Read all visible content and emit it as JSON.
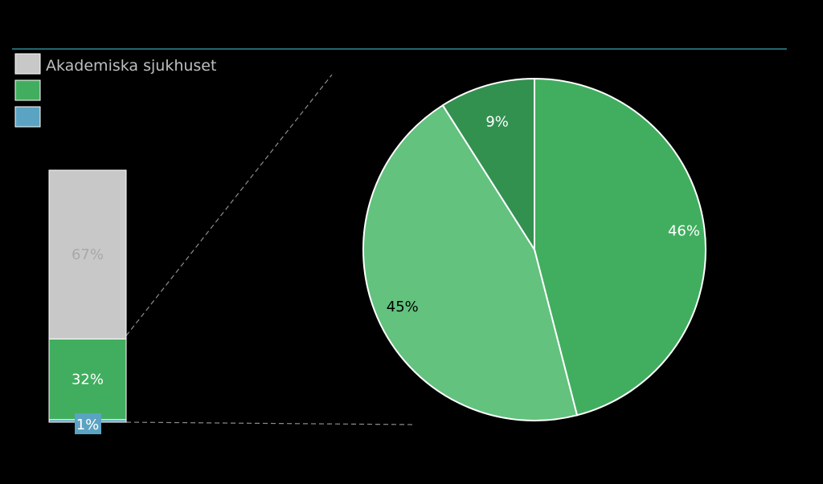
{
  "chart_data": {
    "type": "bar-of-pie",
    "legend": [
      {
        "label": "Akademiska sjukhuset",
        "color": "#c8c8c8"
      },
      {
        "label": "",
        "color": "#41ae5f"
      },
      {
        "label": "",
        "color": "#5ba3c2"
      }
    ],
    "stacked_bar": {
      "segments": [
        {
          "label": "67%",
          "value": 67,
          "color": "#c8c8c8",
          "text_color": "#a8a8a8"
        },
        {
          "label": "32%",
          "value": 32,
          "color": "#41ae5f",
          "text_color": "#ffffff"
        },
        {
          "label": "1%",
          "value": 1,
          "color": "#5ba3c2",
          "text_color": "#ffffff"
        }
      ]
    },
    "pie": {
      "slices": [
        {
          "label": "46%",
          "value": 46,
          "color": "#41ae5f",
          "text_color": "#ffffff"
        },
        {
          "label": "45%",
          "value": 45,
          "color": "#62c27e",
          "text_color": "#000000"
        },
        {
          "label": "9%",
          "value": 9,
          "color": "#339150",
          "text_color": "#ffffff"
        }
      ]
    },
    "colors": {
      "background": "#000000",
      "rule": "#2f8a94",
      "connector": "#8c8c8c",
      "slice_border": "#ffffff"
    }
  }
}
